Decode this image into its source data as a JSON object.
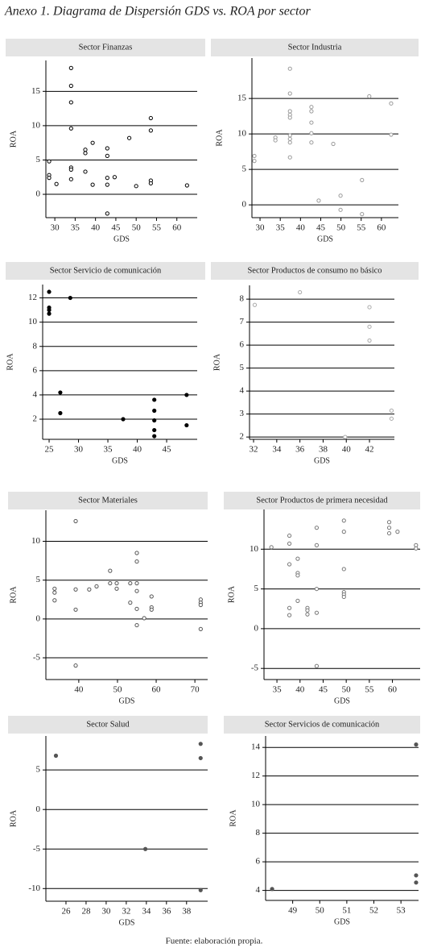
{
  "title": "Anexo 1. Diagrama de Dispersión GDS vs. ROA por sector",
  "source": "Fuente: elaboración propia.",
  "chart_data": [
    {
      "type": "scatter",
      "title": "Sector Finanzas",
      "x_label": "GDS",
      "y_label": "ROA",
      "color": "#000000",
      "filled": false,
      "grid": true,
      "xlim": [
        27.8,
        65
      ],
      "ylim": [
        -3.4,
        19.5
      ],
      "xticks": [
        30,
        35,
        40,
        45,
        50,
        55,
        60
      ],
      "yticks": [
        0,
        5,
        10,
        15
      ],
      "x": [
        28.6,
        28.6,
        28.6,
        30.4,
        34,
        34,
        34,
        34,
        34,
        34,
        34,
        37.5,
        37.5,
        37.5,
        39.3,
        39.3,
        42.9,
        42.9,
        42.9,
        42.9,
        42.9,
        44.7,
        48.3,
        50,
        53.6,
        53.6,
        53.6,
        53.6,
        62.5
      ],
      "y": [
        4.8,
        2.8,
        2.4,
        1.5,
        18.4,
        15.8,
        13.4,
        9.6,
        3.9,
        3.6,
        2.2,
        6.5,
        6,
        3.3,
        7.5,
        1.4,
        6.7,
        5.6,
        2.4,
        1.4,
        -2.8,
        2.5,
        8.2,
        1.2,
        11.1,
        9.3,
        2,
        1.6,
        1.3
      ]
    },
    {
      "type": "scatter",
      "title": "Sector Industria",
      "x_label": "GDS",
      "y_label": "ROA",
      "color": "#9a9a9a",
      "filled": false,
      "grid": true,
      "xlim": [
        28,
        64.2
      ],
      "ylim": [
        -1.8,
        20.7
      ],
      "xticks": [
        30,
        35,
        40,
        45,
        50,
        55,
        60
      ],
      "yticks": [
        0,
        5,
        10,
        15
      ],
      "x": [
        28.6,
        28.6,
        33.8,
        33.8,
        37.4,
        37.4,
        37.4,
        37.4,
        37.4,
        37.4,
        37.4,
        37.4,
        37.4,
        42.7,
        42.7,
        42.7,
        42.7,
        42.7,
        44.5,
        48.1,
        49.9,
        49.9,
        55.2,
        55.2,
        57,
        62.4,
        62.4
      ],
      "y": [
        6.9,
        6.2,
        9.5,
        9.1,
        19.2,
        15.7,
        13.2,
        12.7,
        12.3,
        9.8,
        9.3,
        8.8,
        6.7,
        13.8,
        13.2,
        11.6,
        10.1,
        8.8,
        0.6,
        8.6,
        1.3,
        -0.7,
        3.5,
        -1.3,
        15.3,
        14.3,
        9.9
      ]
    },
    {
      "type": "scatter",
      "title": "Sector Servicio de comunicación",
      "x_label": "GDS",
      "y_label": "ROA",
      "color": "#000000",
      "filled": true,
      "grid": true,
      "xlim": [
        23.9,
        50.2
      ],
      "ylim": [
        0.34,
        13.1
      ],
      "xticks": [
        25,
        30,
        35,
        40,
        45
      ],
      "yticks": [
        2,
        4,
        6,
        8,
        10,
        12
      ],
      "x": [
        25,
        25,
        25,
        25,
        26.9,
        26.9,
        28.6,
        37.6,
        42.9,
        42.9,
        42.9,
        42.9,
        42.9,
        48.4,
        48.4
      ],
      "y": [
        12.5,
        11.2,
        11,
        10.7,
        4.2,
        2.5,
        12,
        2,
        3.6,
        2.7,
        1.9,
        1.1,
        0.6,
        4,
        1.5
      ]
    },
    {
      "type": "scatter",
      "title": "Sector Productos de consumo no básico",
      "x_label": "GDS",
      "y_label": "ROA",
      "color": "#aaaaaa",
      "filled": false,
      "grid": true,
      "xlim": [
        31.65,
        44.15
      ],
      "ylim": [
        1.9,
        8.6
      ],
      "xticks": [
        32,
        34,
        36,
        38,
        40,
        42
      ],
      "yticks": [
        2,
        3,
        4,
        5,
        6,
        7,
        8
      ],
      "x": [
        32.1,
        36,
        39.9,
        42,
        42,
        42,
        43.9,
        43.9
      ],
      "y": [
        7.75,
        8.3,
        2.0,
        7.65,
        6.8,
        6.2,
        3.15,
        2.8
      ]
    },
    {
      "type": "scatter",
      "title": "Sector Materiales",
      "x_label": "GDS",
      "y_label": "ROA",
      "color": "#555555",
      "filled": false,
      "grid": true,
      "xlim": [
        31.5,
        73.3
      ],
      "ylim": [
        -7.8,
        14
      ],
      "xticks": [
        40,
        50,
        60,
        70
      ],
      "yticks": [
        -5,
        0,
        5,
        10
      ],
      "x": [
        33.75,
        33.75,
        33.75,
        39.2,
        39.2,
        39.2,
        39.2,
        42.7,
        44.6,
        48.1,
        48.1,
        49.8,
        49.8,
        53.3,
        53.3,
        55,
        55,
        55,
        55,
        55,
        55,
        56.9,
        58.8,
        58.8,
        58.8,
        71.5,
        71.5,
        71.5,
        71.5
      ],
      "y": [
        3.9,
        3.4,
        2.4,
        12.6,
        3.8,
        1.2,
        -6,
        3.8,
        4.2,
        6.2,
        4.6,
        4.6,
        3.9,
        4.6,
        2.1,
        8.5,
        7.4,
        4.6,
        3.6,
        1.3,
        -0.8,
        0.1,
        2.9,
        1.5,
        1.2,
        2.5,
        2.1,
        1.8,
        -1.3
      ]
    },
    {
      "type": "scatter",
      "title": "Sector Productos de primera necesidad",
      "x_label": "GDS",
      "y_label": "ROA",
      "color": "#777777",
      "filled": false,
      "grid": true,
      "xlim": [
        32.2,
        66
      ],
      "ylim": [
        -6.4,
        15
      ],
      "xticks": [
        35,
        40,
        45,
        50,
        55,
        60
      ],
      "yticks": [
        -5,
        0,
        5,
        10
      ],
      "x": [
        33.8,
        37.7,
        37.7,
        37.7,
        37.7,
        37.7,
        39.5,
        39.5,
        39.5,
        39.5,
        41.6,
        41.6,
        41.6,
        43.6,
        43.6,
        43.6,
        43.6,
        43.6,
        49.5,
        49.5,
        49.5,
        49.5,
        49.5,
        49.5,
        59.3,
        59.3,
        59.3,
        61.1,
        65.1,
        65.1
      ],
      "y": [
        10.25,
        11.7,
        10.7,
        8.1,
        2.6,
        1.7,
        8.8,
        7.0,
        6.7,
        3.5,
        2.6,
        2.3,
        1.8,
        12.7,
        10.5,
        5.0,
        2.0,
        -4.7,
        13.6,
        12.2,
        7.5,
        4.6,
        4.3,
        4.0,
        13.4,
        12.7,
        12.0,
        12.2,
        10.5,
        10.1
      ]
    },
    {
      "type": "scatter",
      "title": "Sector Salud",
      "x_label": "GDS",
      "y_label": "ROA",
      "color": "#555555",
      "filled": true,
      "grid": true,
      "xlim": [
        24,
        40.1
      ],
      "ylim": [
        -11.6,
        9.3
      ],
      "xticks": [
        26,
        28,
        30,
        32,
        34,
        36,
        38
      ],
      "yticks": [
        -10,
        -5,
        0,
        5
      ],
      "x": [
        25,
        33.9,
        39.4,
        39.4,
        39.4
      ],
      "y": [
        6.8,
        -5,
        8.3,
        6.5,
        -10.2
      ]
    },
    {
      "type": "scatter",
      "title": "Sector Servicios de comunicación",
      "x_label": "GDS",
      "y_label": "ROA",
      "color": "#555555",
      "filled": true,
      "grid": true,
      "xlim": [
        48.0,
        53.65
      ],
      "ylim": [
        3.3,
        14.8
      ],
      "xticks": [
        49,
        50,
        51,
        52,
        53
      ],
      "yticks": [
        4,
        6,
        8,
        10,
        12,
        14
      ],
      "x": [
        48.24,
        53.56,
        53.56,
        53.56
      ],
      "y": [
        4.1,
        14.2,
        5.05,
        4.55
      ]
    }
  ]
}
